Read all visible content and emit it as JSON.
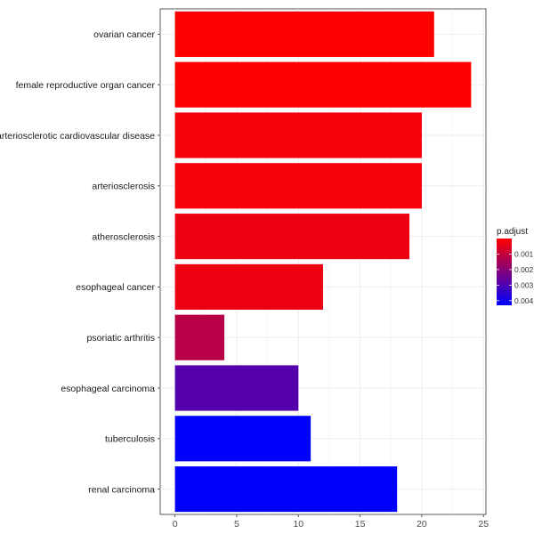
{
  "chart_data": {
    "type": "bar",
    "orientation": "horizontal",
    "title": "",
    "xlabel": "",
    "ylabel": "",
    "categories": [
      "ovarian cancer",
      "female reproductive organ cancer",
      "arteriosclerotic cardiovascular disease",
      "arteriosclerosis",
      "atherosclerosis",
      "esophageal cancer",
      "psoriatic arthritis",
      "esophageal carcinoma",
      "tuberculosis",
      "renal carcinoma"
    ],
    "values": [
      21,
      24,
      20,
      20,
      19,
      12,
      4,
      10,
      11,
      18
    ],
    "p_adjust": [
      2e-05,
      2e-05,
      0.00015,
      0.00015,
      0.0003,
      0.0003,
      0.0012,
      0.0029,
      0.0043,
      0.0043
    ],
    "xlim": [
      -1.2,
      25.2
    ],
    "xticks": [
      0,
      5,
      10,
      15,
      20,
      25
    ],
    "xtick_labels": [
      "0",
      "5",
      "10",
      "15",
      "20",
      "25"
    ],
    "grid": true,
    "legend": {
      "title": "p.adjust",
      "placement": "right",
      "range": [
        0,
        0.0043
      ],
      "ticks": [
        0.001,
        0.002,
        0.003,
        0.004
      ],
      "tick_labels": [
        "0.001",
        "0.002",
        "0.003",
        "0.004"
      ],
      "color_low": "#FF0000",
      "color_high": "#0000FF"
    }
  }
}
